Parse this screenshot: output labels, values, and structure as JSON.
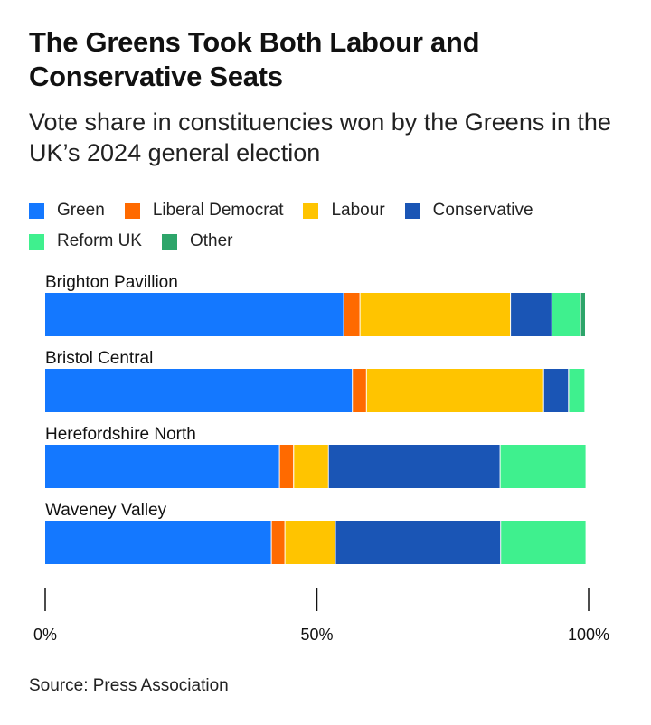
{
  "title": "The Greens Took Both Labour and Conservative Seats",
  "subtitle": "Vote share in constituencies won by the Greens in the UK’s 2024 general election",
  "source": "Source: Press Association",
  "colors": {
    "Green": "#1478ff",
    "Liberal Democrat": "#ff6a00",
    "Labour": "#ffc400",
    "Conservative": "#1a55b5",
    "Reform UK": "#3ff08e",
    "Other": "#2da56a"
  },
  "legend_rows": [
    [
      "Green",
      "Liberal Democrat",
      "Labour",
      "Conservative"
    ],
    [
      "Reform UK",
      "Other"
    ]
  ],
  "chart_data": {
    "type": "bar",
    "orientation": "horizontal",
    "stacked": true,
    "title": "The Greens Took Both Labour and Conservative Seats",
    "subtitle": "Vote share in constituencies won by the Greens in the UK’s 2024 general election",
    "categories": [
      "Brighton Pavillion",
      "Bristol Central",
      "Herefordshire North",
      "Waveney Valley"
    ],
    "series": [
      {
        "name": "Green",
        "values": [
          55.0,
          56.6,
          43.2,
          41.7
        ]
      },
      {
        "name": "Liberal Democrat",
        "values": [
          3.0,
          2.6,
          2.6,
          2.5
        ]
      },
      {
        "name": "Labour",
        "values": [
          27.7,
          32.6,
          6.4,
          9.3
        ]
      },
      {
        "name": "Conservative",
        "values": [
          7.6,
          4.6,
          31.6,
          30.4
        ]
      },
      {
        "name": "Reform UK",
        "values": [
          5.3,
          3.0,
          15.8,
          15.7
        ]
      },
      {
        "name": "Other",
        "values": [
          0.9,
          0.0,
          0.0,
          0.0
        ]
      }
    ],
    "xlim": [
      0,
      100
    ],
    "xticks": [
      {
        "value": 0,
        "label": "0%"
      },
      {
        "value": 50,
        "label": "50%"
      },
      {
        "value": 100,
        "label": "100%"
      }
    ],
    "xlabel": "",
    "ylabel": "",
    "legend_position": "top",
    "grid": false
  }
}
